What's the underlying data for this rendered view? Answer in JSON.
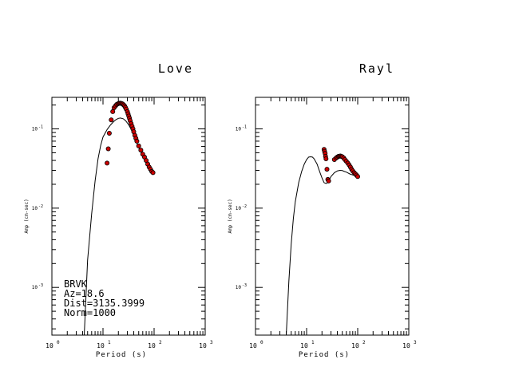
{
  "chart_data": [
    {
      "type": "line",
      "title": "Love",
      "xlabel": "Period (s)",
      "ylabel": "Amp (cm-sec)",
      "xscale": "log",
      "yscale": "log",
      "xlim": [
        1,
        1000
      ],
      "ylim": [
        0.00025,
        0.25
      ],
      "xtick_labels": [
        {
          "base": "10",
          "exp": "0"
        },
        {
          "base": "10",
          "exp": "1"
        },
        {
          "base": "10",
          "exp": "2"
        },
        {
          "base": "10",
          "exp": "3"
        }
      ],
      "ytick_labels": [
        {
          "base": "10",
          "exp": "-3",
          "value": 0.001
        },
        {
          "base": "10",
          "exp": "-2",
          "value": 0.01
        },
        {
          "base": "10",
          "exp": "-1",
          "value": 0.1
        }
      ],
      "annotation": [
        "BRVK",
        "Az=18.6",
        "Dist=3135.3999",
        "Norm=1000"
      ],
      "annotation_position": "bottom-left",
      "series": [
        {
          "kind": "line",
          "color": "#000000",
          "x": [
            4.3,
            5.0,
            6.0,
            7.0,
            8.0,
            9.0,
            10.0,
            12.0,
            14.0,
            16.0,
            18.0,
            20.0,
            22.0,
            25.0,
            28.0,
            32.0,
            36.0,
            40.0,
            45.0,
            50.0,
            60.0,
            70.0,
            80.0,
            90.0,
            100.0
          ],
          "y": [
            0.00025,
            0.0022,
            0.0085,
            0.022,
            0.042,
            0.062,
            0.079,
            0.098,
            0.112,
            0.123,
            0.131,
            0.136,
            0.137,
            0.134,
            0.126,
            0.112,
            0.097,
            0.083,
            0.069,
            0.058,
            0.046,
            0.039,
            0.034,
            0.031,
            0.029
          ]
        },
        {
          "kind": "scatter",
          "color": "#cc0000",
          "edge": "#000000",
          "x": [
            12.0,
            12.7,
            13.3,
            14.5,
            15.5,
            16.5,
            17.5,
            18.5,
            19.5,
            20.5,
            21.5,
            22.5,
            23.5,
            24.5,
            25.5,
            26.5,
            27.5,
            28.5,
            30.0,
            31.0,
            32.0,
            33.0,
            34.0,
            35.5,
            37.0,
            38.5,
            40.0,
            42.0,
            44.0,
            46.0,
            50.0,
            55.0,
            60.0,
            65.0,
            70.0,
            75.0,
            80.0,
            85.0,
            90.0,
            95.0
          ],
          "y": [
            0.037,
            0.056,
            0.088,
            0.13,
            0.165,
            0.185,
            0.195,
            0.203,
            0.207,
            0.21,
            0.211,
            0.21,
            0.208,
            0.205,
            0.2,
            0.194,
            0.186,
            0.178,
            0.165,
            0.155,
            0.145,
            0.136,
            0.127,
            0.117,
            0.108,
            0.1,
            0.092,
            0.083,
            0.076,
            0.07,
            0.061,
            0.054,
            0.048,
            0.044,
            0.04,
            0.036,
            0.033,
            0.031,
            0.029,
            0.028
          ]
        }
      ]
    },
    {
      "type": "line",
      "title": "Rayl",
      "xlabel": "Period (s)",
      "ylabel": "Amp (cm-sec)",
      "xscale": "log",
      "yscale": "log",
      "xlim": [
        1,
        1000
      ],
      "ylim": [
        0.00025,
        0.25
      ],
      "xtick_labels": [
        {
          "base": "10",
          "exp": "0"
        },
        {
          "base": "10",
          "exp": "1"
        },
        {
          "base": "10",
          "exp": "2"
        },
        {
          "base": "10",
          "exp": "3"
        }
      ],
      "ytick_labels": [
        {
          "base": "10",
          "exp": "-3",
          "value": 0.001
        },
        {
          "base": "10",
          "exp": "-2",
          "value": 0.01
        },
        {
          "base": "10",
          "exp": "-1",
          "value": 0.1
        }
      ],
      "series": [
        {
          "kind": "line",
          "color": "#000000",
          "x": [
            4.0,
            4.5,
            5.0,
            5.5,
            6.0,
            7.0,
            8.0,
            9.0,
            10.0,
            11.0,
            12.0,
            13.0,
            14.0,
            16.0,
            18.0,
            20.0,
            22.0,
            24.0,
            26.0,
            28.0,
            30.0,
            35.0,
            40.0,
            45.0,
            50.0,
            55.0,
            60.0,
            70.0,
            80.0,
            90.0,
            100.0
          ],
          "y": [
            0.00025,
            0.0012,
            0.0035,
            0.0074,
            0.012,
            0.021,
            0.029,
            0.036,
            0.041,
            0.044,
            0.0445,
            0.044,
            0.042,
            0.036,
            0.029,
            0.024,
            0.021,
            0.0205,
            0.021,
            0.023,
            0.025,
            0.028,
            0.0295,
            0.03,
            0.0298,
            0.029,
            0.0285,
            0.027,
            0.0262,
            0.0255,
            0.025
          ]
        },
        {
          "kind": "scatter",
          "color": "#cc0000",
          "edge": "#000000",
          "x": [
            22.0,
            22.5,
            23.0,
            23.5,
            24.0,
            25.0,
            26.0,
            27.0,
            35.0,
            38.0,
            40.0,
            42.0,
            44.0,
            46.0,
            48.0,
            50.0,
            53.0,
            56.0,
            60.0,
            64.0,
            68.0,
            72.0,
            76.0,
            80.0,
            85.0,
            90.0,
            95.0,
            100.0
          ],
          "y": [
            0.055,
            0.052,
            0.049,
            0.045,
            0.042,
            0.031,
            0.023,
            0.022,
            0.041,
            0.043,
            0.044,
            0.045,
            0.0452,
            0.0455,
            0.045,
            0.0445,
            0.043,
            0.041,
            0.039,
            0.037,
            0.035,
            0.033,
            0.031,
            0.0295,
            0.028,
            0.027,
            0.026,
            0.025
          ]
        }
      ]
    }
  ]
}
